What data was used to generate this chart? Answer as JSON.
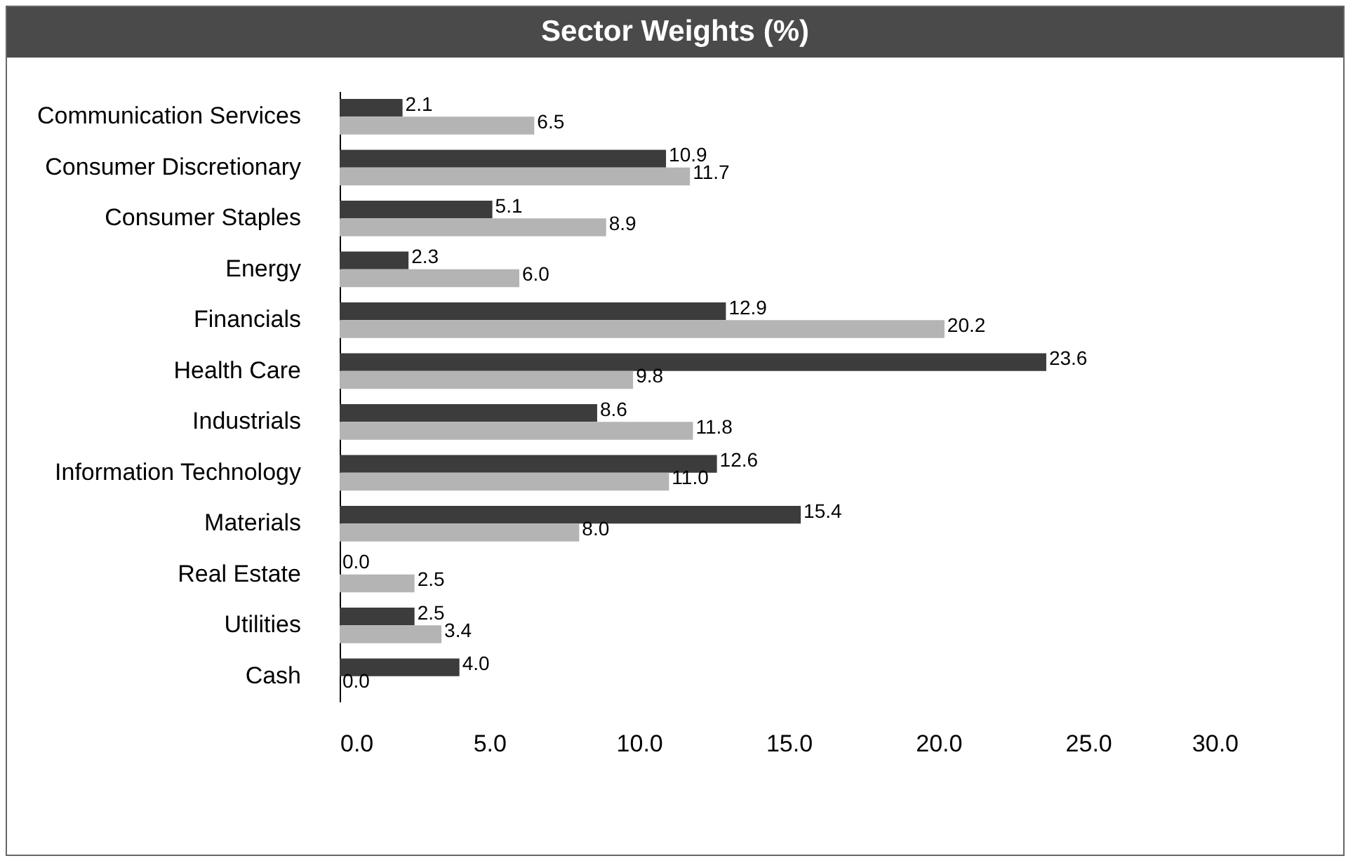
{
  "chart_data": {
    "type": "bar",
    "orientation": "horizontal",
    "title": "Sector Weights (%)",
    "categories": [
      "Communication Services",
      "Consumer Discretionary",
      "Consumer Staples",
      "Energy",
      "Financials",
      "Health Care",
      "Industrials",
      "Information Technology",
      "Materials",
      "Real Estate",
      "Utilities",
      "Cash"
    ],
    "series": [
      {
        "color": "#3c3c3c",
        "values": [
          2.1,
          10.9,
          5.1,
          2.3,
          12.9,
          23.6,
          8.6,
          12.6,
          15.4,
          0.0,
          2.5,
          4.0
        ],
        "value_labels": [
          "2.1",
          "10.9",
          "5.1",
          "2.3",
          "12.9",
          "23.6",
          "8.6",
          "12.6",
          "15.4",
          "0.0",
          "2.5",
          "4.0"
        ]
      },
      {
        "color": "#b4b4b4",
        "values": [
          6.5,
          11.7,
          8.9,
          6.0,
          20.2,
          9.8,
          11.8,
          11.0,
          8.0,
          2.5,
          3.4,
          0.0
        ],
        "value_labels": [
          "6.5",
          "11.7",
          "8.9",
          "6.0",
          "20.2",
          "9.8",
          "11.8",
          "11.0",
          "8.0",
          "2.5",
          "3.4",
          "0.0"
        ]
      }
    ],
    "xlim": [
      0,
      30
    ],
    "xticks": [
      {
        "value": 0,
        "label": "0.0"
      },
      {
        "value": 5,
        "label": "5.0"
      },
      {
        "value": 10,
        "label": "10.0"
      },
      {
        "value": 15,
        "label": "15.0"
      },
      {
        "value": 20,
        "label": "20.0"
      },
      {
        "value": 25,
        "label": "25.0"
      },
      {
        "value": 30,
        "label": "30.0"
      }
    ],
    "grid": false,
    "legend": false
  }
}
